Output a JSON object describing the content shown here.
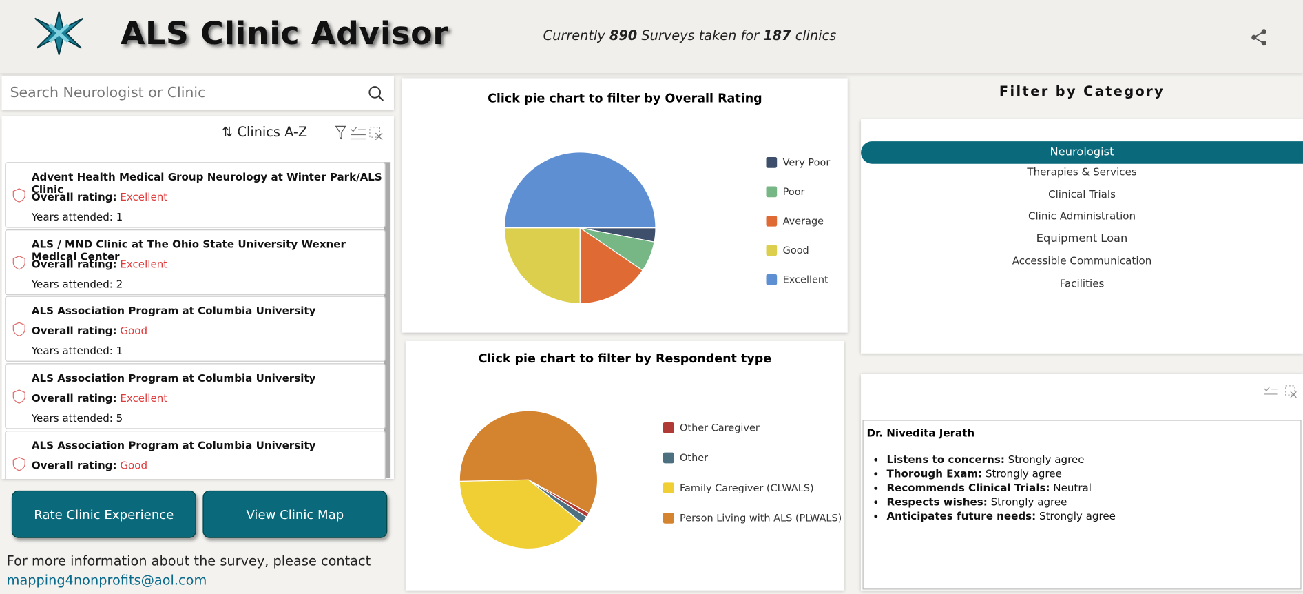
{
  "header": {
    "title": "ALS Clinic Advisor",
    "surveys_prefix": "Currently",
    "surveys": 890,
    "surveys_middle": "Surveys taken for",
    "clinics": 187,
    "surveys_suffix": "clinics"
  },
  "search": {
    "placeholder": "Search Neurologist or Clinic"
  },
  "list": {
    "sort": "Clinics A-Z",
    "items": [
      {
        "name": "Advent Health Medical Group Neurology at Winter Park/ALS Clinic",
        "rating_label": "Overall rating:",
        "rating": "Excellent",
        "years": "Years attended: 1"
      },
      {
        "name": "ALS / MND Clinic at The Ohio State University Wexner Medical Center",
        "rating_label": "Overall rating:",
        "rating": "Excellent",
        "years": "Years attended: 2"
      },
      {
        "name": "ALS Association Program at Columbia University",
        "rating_label": "Overall rating:",
        "rating": "Good",
        "years": "Years attended: 1"
      },
      {
        "name": "ALS Association Program at Columbia University",
        "rating_label": "Overall rating:",
        "rating": "Excellent",
        "years": "Years attended: 5"
      },
      {
        "name": "ALS Association Program at Columbia University",
        "rating_label": "Overall rating:",
        "rating": "Good"
      }
    ]
  },
  "buttons": [
    "Rate Clinic Experience",
    "View Clinic Map"
  ],
  "contact": {
    "text": "For more information about the survey, please contact",
    "email": "mapping4nonprofits@aol.com"
  },
  "charts": [
    {
      "type": "pie",
      "title": "Click pie chart to filter by Overall Rating",
      "categories": [
        "Very Poor",
        "Poor",
        "Average",
        "Good",
        "Excellent"
      ],
      "values": [
        3,
        6.5,
        15.5,
        25,
        50
      ],
      "colors": [
        "#3d4f6b",
        "#76b785",
        "#e06a33",
        "#dccf4e",
        "#5f8fd3"
      ]
    },
    {
      "type": "pie",
      "title": "Click pie chart to filter by Respondent type",
      "categories": [
        "Other Caregiver",
        "Other",
        "Family Caregiver (CLWALS)",
        "Person Living with ALS (PLWALS)"
      ],
      "values": [
        1,
        1.8,
        38.8,
        58.4
      ],
      "colors": [
        "#b03a35",
        "#4c7080",
        "#f0cf35",
        "#d4832f"
      ]
    }
  ],
  "filter": {
    "title": "Filter by Category",
    "items": [
      "Neurologist",
      "Therapies & Services",
      "Clinical Trials",
      "Clinic Administration",
      "Equipment Loan",
      "Accessible Communication",
      "Facilities"
    ]
  },
  "detail": {
    "name": "Dr. Nivedita Jerath",
    "items": [
      {
        "label": "Listens to concerns:",
        "value": "Strongly agree"
      },
      {
        "label": "Thorough Exam:",
        "value": "Strongly agree"
      },
      {
        "label": "Recommends Clinical Trials:",
        "value": "Neutral"
      },
      {
        "label": "Respects wishes:",
        "value": "Strongly agree"
      },
      {
        "label": "Anticipates future needs:",
        "value": "Strongly agree"
      }
    ]
  }
}
